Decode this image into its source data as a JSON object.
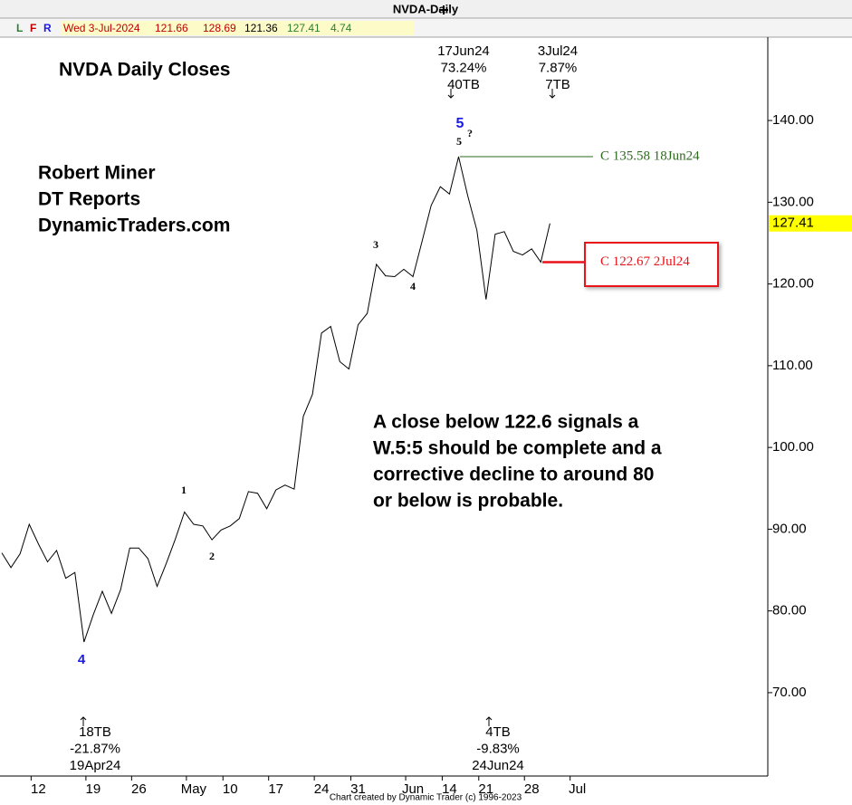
{
  "chart_data": {
    "type": "line",
    "title": "NVDA-Daily",
    "info_bar": {
      "flags": [
        "L",
        "F",
        "R"
      ],
      "date": "Wed 3-Jul-2024",
      "open": 121.66,
      "high": 128.69,
      "low": 121.36,
      "close": 127.41,
      "change": 4.74
    },
    "categories": [
      null,
      null,
      null,
      null,
      "12",
      null,
      null,
      null,
      null,
      null,
      "19",
      null,
      null,
      null,
      null,
      "26",
      null,
      null,
      null,
      null,
      null,
      "May",
      null,
      null,
      null,
      "10",
      null,
      null,
      null,
      null,
      "17",
      null,
      null,
      null,
      null,
      "24",
      null,
      null,
      null,
      "31",
      null,
      null,
      null,
      null,
      null,
      "Jun",
      null,
      null,
      null,
      "14",
      null,
      null,
      null,
      "21",
      null,
      null,
      null,
      null,
      "28",
      null,
      null,
      null,
      null,
      "Jul"
    ],
    "values": [
      87.1,
      85.3,
      87.0,
      90.6,
      88.2,
      86.0,
      87.4,
      84.0,
      84.7,
      76.2,
      79.5,
      82.4,
      79.7,
      82.6,
      87.7,
      87.7,
      86.4,
      83.0,
      85.8,
      88.8,
      92.1,
      90.6,
      90.4,
      88.7,
      89.9,
      90.4,
      91.3,
      94.6,
      94.4,
      92.5,
      94.8,
      95.4,
      94.9,
      103.8,
      106.5,
      114.0,
      114.8,
      110.5,
      109.6,
      115.0,
      116.4,
      122.4,
      121.0,
      120.9,
      121.8,
      120.9,
      125.2,
      129.6,
      131.9,
      131.0,
      135.58,
      130.78,
      126.57,
      118.11,
      126.09,
      126.4,
      123.99,
      123.54,
      124.3,
      122.67,
      127.41,
      null,
      null,
      null
    ],
    "color": "#000000",
    "ylim": [
      59.8,
      150.2
    ],
    "yticks": [
      {
        "value": 70,
        "label": "70.00"
      },
      {
        "value": 80,
        "label": "80.00"
      },
      {
        "value": 90,
        "label": "90.00"
      },
      {
        "value": 100,
        "label": "100.00"
      },
      {
        "value": 110,
        "label": "110.00"
      },
      {
        "value": 120,
        "label": "120.00"
      },
      {
        "value": 130,
        "label": "130.00"
      },
      {
        "value": 140,
        "label": "140.00"
      }
    ],
    "grid": false,
    "price_tag": 127.41,
    "reference_lines": [
      {
        "value": 135.58,
        "label": "C 135.58 18Jun24",
        "color": "#2e6b1f"
      },
      {
        "value": 122.67,
        "label": "C 122.67 2Jul24",
        "color": "#e8141a"
      }
    ],
    "wave_labels": [
      {
        "text": "4",
        "color": "#1a1ae6"
      },
      {
        "text": "1",
        "color": "#000000"
      },
      {
        "text": "2",
        "color": "#000000"
      },
      {
        "text": "3",
        "color": "#000000"
      },
      {
        "text": "4",
        "color": "#000000"
      },
      {
        "text": "5",
        "color": "#000000"
      },
      {
        "text": "5",
        "color": "#1a1ae6"
      },
      {
        "text": "?",
        "color": "#000000"
      }
    ],
    "pivot_notes": [
      {
        "lines": [
          "17Jun24",
          "73.24%",
          "40TB"
        ]
      },
      {
        "lines": [
          "3Jul24",
          "7.87%",
          "7TB"
        ]
      },
      {
        "lines": [
          "18TB",
          "-21.87%",
          "19Apr24"
        ]
      },
      {
        "lines": [
          "4TB",
          "-9.83%",
          "24Jun24"
        ]
      }
    ],
    "annotations": [
      "NVDA Daily Closes",
      "Robert Miner",
      "DT Reports",
      "DynamicTraders.com"
    ],
    "commentary": [
      "A close below 122.6 signals a",
      "W.5:5 should be complete and a",
      "corrective decline to around 80",
      "or below is probable."
    ],
    "footer": "Chart created by Dynamic Trader  (c) 1996-2023"
  }
}
